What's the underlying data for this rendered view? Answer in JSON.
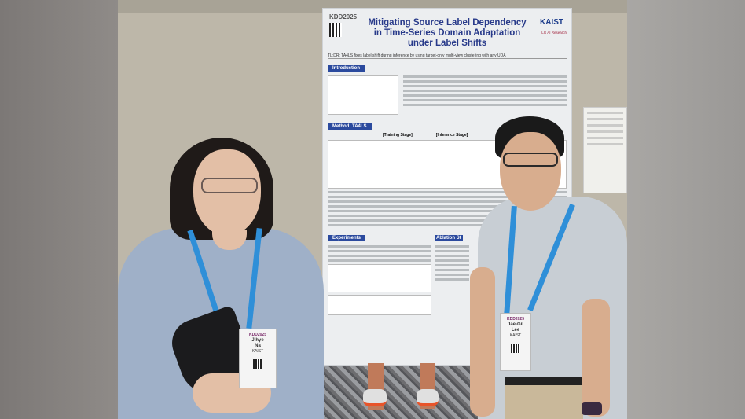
{
  "poster": {
    "conference_logo": "KDD2025",
    "title_line1": "Mitigating Source Label Dependency",
    "title_line2": "in Time-Series Domain Adaptation under Label Shifts",
    "institution_logo": "KAIST",
    "partner_logo": "LG AI Research",
    "tldr": "TL;DR: TA4LS fixes label shift during inference by using target-only multi-view clustering with any UDA",
    "sections": [
      "Introduction",
      "Method: TA4LS",
      "Experiments",
      "Ablation St"
    ],
    "stage_labels": [
      "[Training Stage]",
      "[Inference Stage]"
    ]
  },
  "badges": [
    {
      "first": "Jihye",
      "last": "Na",
      "org": "KAIST",
      "event": "KDD2025"
    },
    {
      "first": "Jae-Gil",
      "last": "Lee",
      "org": "KAIST",
      "event": "KDD2025"
    }
  ],
  "colors": {
    "poster_title": "#283a8a",
    "section_header": "#2b4a9e",
    "lanyard": "#2f8fd8",
    "wall": "#bdb7a9"
  }
}
